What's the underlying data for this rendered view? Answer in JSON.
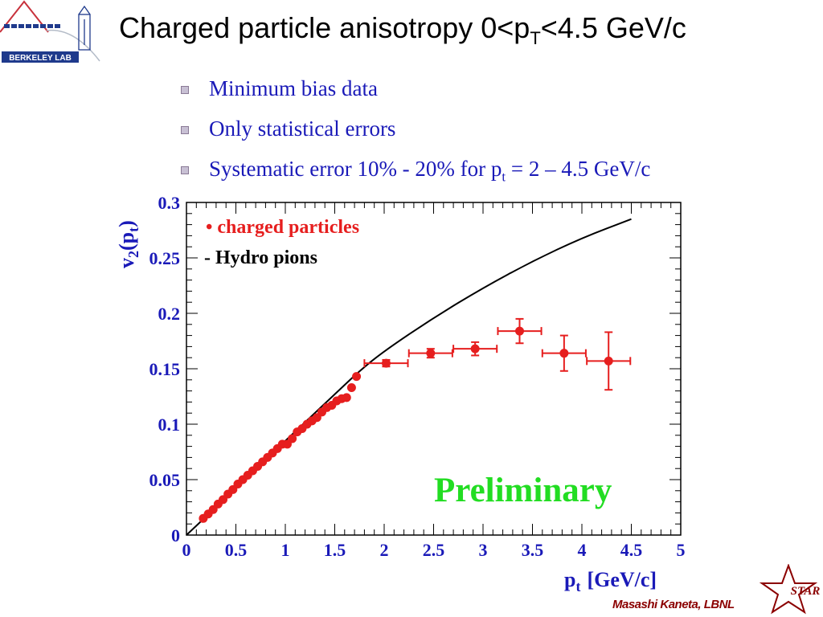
{
  "header": {
    "logo_text": "BERKELEY LAB",
    "title_main": "Charged particle anisotropy 0<p",
    "title_sub": "T",
    "title_end": "<4.5 GeV/c"
  },
  "bullets": [
    {
      "text": "Minimum bias data"
    },
    {
      "text": "Only statistical errors"
    },
    {
      "text": "Systematic error 10% - 20% for p",
      "sub": "t",
      "end": " = 2 – 4.5 GeV/c"
    }
  ],
  "chart_data": {
    "type": "scatter",
    "xlabel": "p",
    "xlabel_sub": "t",
    "xlabel_units": "[GeV/c]",
    "ylabel": "v",
    "ylabel_sub": "2",
    "ylabel_arg": "(p",
    "ylabel_arg_sub": "t",
    "ylabel_close": ")",
    "xlim": [
      0,
      5
    ],
    "ylim": [
      0,
      0.3
    ],
    "xticks": [
      "0",
      "0.5",
      "1",
      "1.5",
      "2",
      "2.5",
      "3",
      "3.5",
      "4",
      "4.5",
      "5"
    ],
    "yticks": [
      "0",
      "0.05",
      "0.1",
      "0.15",
      "0.2",
      "0.25",
      "0.3"
    ],
    "legend_position": "top-left",
    "watermark": "Preliminary",
    "colors": {
      "data": "#e61e1e",
      "curve": "#000000",
      "axis_label": "#1a1ab8",
      "watermark": "#22dd22"
    },
    "series": [
      {
        "name": "charged particles",
        "legend_text": "• charged particles",
        "x": [
          0.17,
          0.22,
          0.27,
          0.32,
          0.37,
          0.42,
          0.47,
          0.52,
          0.57,
          0.62,
          0.67,
          0.72,
          0.77,
          0.82,
          0.87,
          0.92,
          0.97,
          1.02,
          1.07,
          1.12,
          1.17,
          1.22,
          1.27,
          1.32,
          1.37,
          1.42,
          1.47,
          1.52,
          1.57,
          1.62,
          1.67,
          1.72,
          2.02,
          2.47,
          2.92,
          3.37,
          3.82,
          4.27
        ],
        "y": [
          0.015,
          0.019,
          0.023,
          0.028,
          0.032,
          0.037,
          0.041,
          0.046,
          0.05,
          0.054,
          0.058,
          0.062,
          0.066,
          0.07,
          0.074,
          0.078,
          0.082,
          0.082,
          0.087,
          0.093,
          0.096,
          0.1,
          0.103,
          0.106,
          0.111,
          0.115,
          0.117,
          0.121,
          0.123,
          0.124,
          0.133,
          0.143,
          0.155,
          0.164,
          0.168,
          0.184,
          0.164,
          0.157
        ],
        "xerr": [
          0,
          0,
          0,
          0,
          0,
          0,
          0,
          0,
          0,
          0,
          0,
          0,
          0,
          0,
          0,
          0,
          0,
          0,
          0,
          0,
          0,
          0,
          0,
          0,
          0,
          0,
          0,
          0,
          0,
          0,
          0,
          0,
          0.22,
          0.22,
          0.22,
          0.22,
          0.22,
          0.22
        ],
        "yerr": [
          0,
          0,
          0,
          0,
          0,
          0,
          0,
          0,
          0,
          0,
          0,
          0,
          0,
          0,
          0,
          0,
          0,
          0,
          0,
          0,
          0,
          0,
          0,
          0,
          0,
          0,
          0,
          0,
          0,
          0,
          0,
          0,
          0.003,
          0.004,
          0.006,
          0.011,
          0.016,
          0.026
        ]
      },
      {
        "name": "Hydro pions",
        "legend_text": "- Hydro pions",
        "x": [
          0.0,
          0.25,
          0.5,
          0.75,
          1.0,
          1.25,
          1.5,
          1.75,
          2.0,
          2.5,
          3.0,
          3.5,
          4.0,
          4.5
        ],
        "y": [
          0.0,
          0.021,
          0.043,
          0.064,
          0.085,
          0.106,
          0.127,
          0.148,
          0.166,
          0.196,
          0.223,
          0.247,
          0.268,
          0.285
        ]
      }
    ]
  },
  "footer": {
    "star_text": "STAR",
    "author": "Masashi Kaneta, LBNL"
  }
}
